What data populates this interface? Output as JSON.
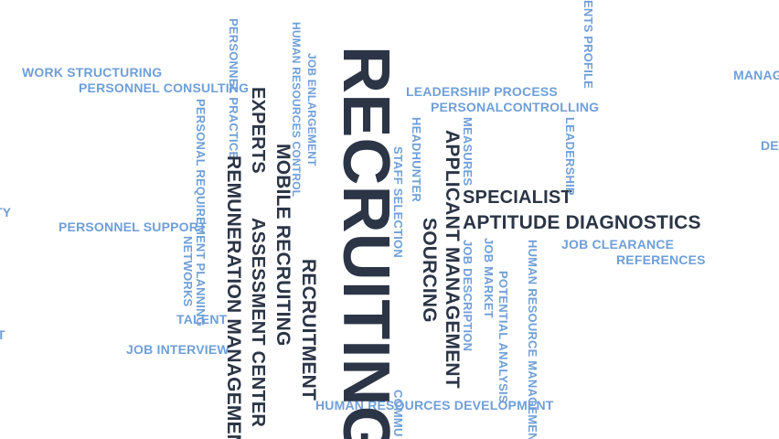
{
  "colors": {
    "light": "#6f9fd8",
    "dark": "#2b3546",
    "background": "#ffffff"
  },
  "words": {
    "recruiting": "RECRUITING",
    "work_structuring": "WORK STRUCTURING",
    "personnel_consulting": "PERSONNEL CONSULTING",
    "personnel_support": "PERSONNEL SUPPORT",
    "job_interview": "JOB INTERVIEW",
    "talent": "TALENT",
    "networks": "NETWORKS",
    "personal_requirement_planning": "PERSONAL REQUIREMENT PLANNING",
    "personnel_practice": "PERSONNEL PRACTICE",
    "experts": "EXPERTS",
    "remuneration_management": "REMUNERATION MANAGEMENT",
    "assessment_center": "ASSESSMENT CENTER",
    "mobile_recruiting": "MOBILE RECRUITING",
    "human_resources_control": "HUMAN RESOURCES CONTROL",
    "job_enlargement": "JOB ENLARGEMENT",
    "recruitment": "RECRUITMENT",
    "leadership_process": "LEADERSHIP PROCESS",
    "personalcontrolling": "PERSONALCONTROLLING",
    "headhunter": "HEADHUNTER",
    "staff_selection": "STAFF SELECTION",
    "measures": "MEASURES",
    "applicant_management": "APPLICANT MANAGEMENT",
    "sourcing": "SOURCING",
    "specialist": "SPECIALIST",
    "aptitude_diagnostics": "APTITUDE DIAGNOSTICS",
    "job_market": "JOB MARKET",
    "job_description": "JOB DESCRIPTION",
    "potential_analysis": "POTENTIAL ANALYSIS",
    "human_resource_management": "HUMAN RESOURCE MANAGEMENT",
    "job_clearance": "JOB CLEARANCE",
    "references": "REFERENCES",
    "leadership": "LEADERSHIP",
    "talents_profile": "ENTS PROFILE",
    "management_cut": "MANAGI",
    "dev_cut": "DEV",
    "commu_cut": "COMMU",
    "human_resources_development": "HUMAN RESOURCES DEVELOPMENT",
    "left_cut_y": "TY",
    "left_cut_t": "T"
  }
}
